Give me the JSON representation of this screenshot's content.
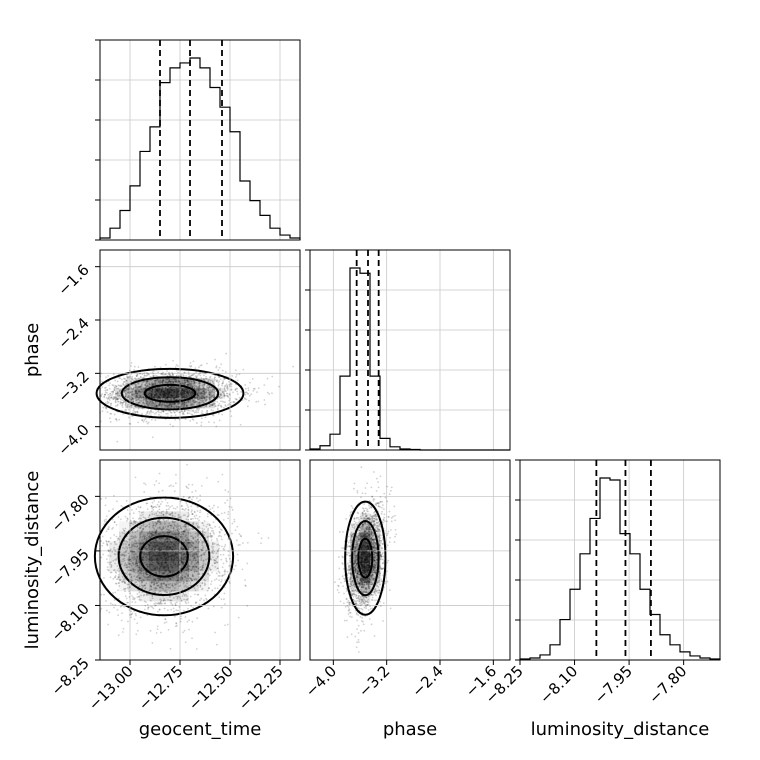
{
  "chart_data": {
    "type": "corner",
    "parameters": [
      {
        "name": "geocent_time",
        "label": "geocent_time",
        "range": [
          -13.15,
          -12.15
        ],
        "ticks": [
          -13.0,
          -12.75,
          -12.5,
          -12.25
        ],
        "tick_labels": [
          "−13.00",
          "−12.75",
          "−12.50",
          "−12.25"
        ],
        "quantiles": [
          -12.85,
          -12.7,
          -12.54
        ]
      },
      {
        "name": "phase",
        "label": "phase",
        "range": [
          -4.35,
          -1.35
        ],
        "ticks": [
          -4.0,
          -3.2,
          -2.4,
          -1.6
        ],
        "tick_labels": [
          "−4.0",
          "−3.2",
          "−2.4",
          "−1.6"
        ],
        "quantiles": [
          -3.65,
          -3.48,
          -3.32
        ]
      },
      {
        "name": "luminosity_distance",
        "label": "luminosity_distance",
        "range": [
          -8.25,
          -7.7
        ],
        "ticks": [
          -8.25,
          -8.1,
          -7.95,
          -7.8
        ],
        "tick_labels": [
          "−8.25",
          "−8.10",
          "−7.95",
          "−7.80"
        ],
        "quantiles": [
          -8.04,
          -7.96,
          -7.89
        ]
      }
    ],
    "histograms": [
      {
        "param": "geocent_time",
        "bins": [
          -13.15,
          -13.1,
          -13.05,
          -13.0,
          -12.95,
          -12.9,
          -12.85,
          -12.8,
          -12.75,
          -12.7,
          -12.65,
          -12.6,
          -12.55,
          -12.5,
          -12.45,
          -12.4,
          -12.35,
          -12.3,
          -12.25,
          -12.2,
          -12.15
        ],
        "counts": [
          2,
          12,
          30,
          55,
          90,
          115,
          160,
          175,
          180,
          185,
          175,
          155,
          135,
          110,
          60,
          40,
          25,
          12,
          5,
          2
        ]
      },
      {
        "param": "phase",
        "bins": [
          -4.35,
          -4.2,
          -4.05,
          -3.9,
          -3.75,
          -3.6,
          -3.45,
          -3.3,
          -3.15,
          -3.0,
          -2.85,
          -2.7,
          -2.55,
          -2.4,
          -2.25,
          -2.1,
          -1.95,
          -1.8,
          -1.65,
          -1.5,
          -1.35
        ],
        "counts": [
          2,
          8,
          30,
          140,
          345,
          335,
          140,
          22,
          6,
          2,
          1,
          0,
          0,
          0,
          0,
          0,
          0,
          0,
          0,
          0
        ]
      },
      {
        "param": "luminosity_distance",
        "bins": [
          -8.25,
          -8.2225,
          -8.195,
          -8.1675,
          -8.14,
          -8.1125,
          -8.085,
          -8.0575,
          -8.03,
          -8.0025,
          -7.975,
          -7.9475,
          -7.92,
          -7.8925,
          -7.865,
          -7.8375,
          -7.81,
          -7.7825,
          -7.755,
          -7.7275,
          -7.7
        ],
        "counts": [
          1,
          2,
          5,
          15,
          40,
          70,
          105,
          140,
          180,
          178,
          125,
          105,
          70,
          45,
          25,
          15,
          8,
          4,
          2,
          1
        ]
      }
    ],
    "contour_panels": [
      {
        "x": "geocent_time",
        "y": "phase",
        "peak": [
          -12.8,
          -3.5
        ]
      },
      {
        "x": "geocent_time",
        "y": "luminosity_distance",
        "peak": [
          -12.83,
          -7.965
        ]
      },
      {
        "x": "phase",
        "y": "luminosity_distance",
        "peak": [
          -3.52,
          -7.97
        ]
      }
    ],
    "grid": true
  }
}
